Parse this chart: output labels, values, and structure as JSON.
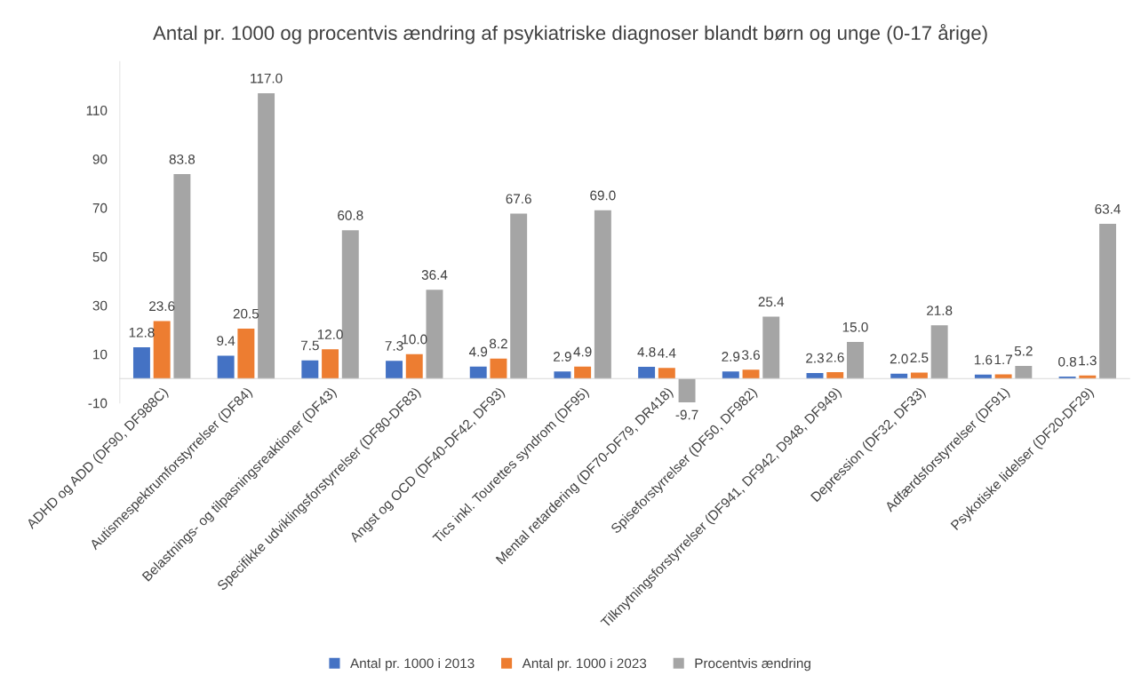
{
  "chart_data": {
    "type": "bar",
    "title": "Antal pr. 1000 og procentvis ændring af psykiatriske diagnoser blandt børn og unge (0-17 årige)",
    "categories": [
      "ADHD og ADD (DF90, DF988C)",
      "Autismespektrumforstyrrelser (DF84)",
      "Belastnings- og tilpasningsreaktioner (DF43)",
      "Specifikke udviklingsforstyrrelser (DF80-DF83)",
      "Angst og OCD (DF40-DF42, DF93)",
      "Tics inkl. Tourettes syndrom (DF95)",
      "Mental retardering (DF70-DF79, DR418)",
      "Spiseforstyrrelser (DF50, DF982)",
      "Tilknytningsforstyrrelser (DF941, DF942, D948, DF949)",
      "Depression (DF32, DF33)",
      "Adfærdsforstyrrelser (DF91)",
      "Psykotiske lidelser (DF20-DF29)"
    ],
    "series": [
      {
        "name": "Antal pr. 1000 i 2013",
        "color": "#4472c4",
        "values": [
          12.8,
          9.4,
          7.5,
          7.3,
          4.9,
          2.9,
          4.8,
          2.9,
          2.3,
          2.0,
          1.6,
          0.8
        ],
        "value_labels": [
          "12.8",
          "9.4",
          "7.5",
          "7.3",
          "4.9",
          "2.9",
          "4.8",
          "2.9",
          "2.3",
          "2.0",
          "1.6",
          "0.8"
        ]
      },
      {
        "name": "Antal pr. 1000 i 2023",
        "color": "#ed7d31",
        "values": [
          23.6,
          20.5,
          12.0,
          10.0,
          8.2,
          4.9,
          4.4,
          3.6,
          2.6,
          2.5,
          1.7,
          1.3
        ],
        "value_labels": [
          "23.6",
          "20.5",
          "12.0",
          "10.0",
          "8.2",
          "4.9",
          "4.4",
          "3.6",
          "2.6",
          "2.5",
          "1.7",
          "1.3"
        ]
      },
      {
        "name": "Procentvis ændring",
        "color": "#a5a5a5",
        "values": [
          83.8,
          117.0,
          60.8,
          36.4,
          67.6,
          69.0,
          -9.7,
          25.4,
          15.0,
          21.8,
          5.2,
          63.4
        ],
        "value_labels": [
          "83.8",
          "117.0",
          "60.8",
          "36.4",
          "67.6",
          "69.0",
          "-9.7",
          "25.4",
          "15.0",
          "21.8",
          "5.2",
          "63.4"
        ]
      }
    ],
    "ylim": [
      -10,
      130
    ],
    "yticks": [
      -10,
      10,
      30,
      50,
      70,
      90,
      110
    ],
    "grid": false,
    "legend": "bottom"
  }
}
